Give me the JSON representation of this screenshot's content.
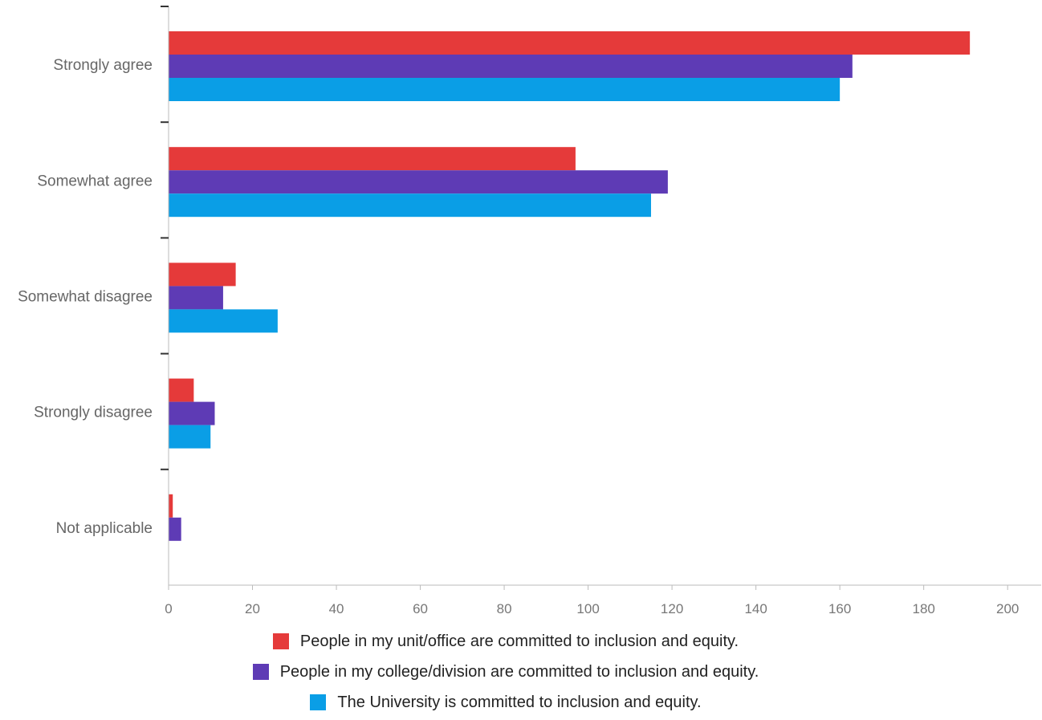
{
  "chart_data": {
    "type": "bar",
    "orientation": "horizontal",
    "categories": [
      "Strongly agree",
      "Somewhat agree",
      "Somewhat disagree",
      "Strongly disagree",
      "Not applicable"
    ],
    "series": [
      {
        "name": "People in my unit/office are committed to inclusion and equity.",
        "color": "#e53a3a",
        "values": [
          191,
          97,
          16,
          6,
          1
        ]
      },
      {
        "name": "People in my college/division are committed to inclusion and equity.",
        "color": "#5e3bb5",
        "values": [
          163,
          119,
          13,
          11,
          3
        ]
      },
      {
        "name": "The University is committed to inclusion and equity.",
        "color": "#0a9ee6",
        "values": [
          160,
          115,
          26,
          10,
          0
        ]
      }
    ],
    "xlim": [
      0,
      208
    ],
    "xticks": [
      0,
      20,
      40,
      60,
      80,
      100,
      120,
      140,
      160,
      180,
      200
    ],
    "xticks_labels": [
      "0",
      "20",
      "40",
      "60",
      "80",
      "100",
      "120",
      "140",
      "160",
      "180",
      "200"
    ],
    "grid": false,
    "legend_position": "bottom",
    "title": "",
    "xlabel": "",
    "ylabel": ""
  }
}
